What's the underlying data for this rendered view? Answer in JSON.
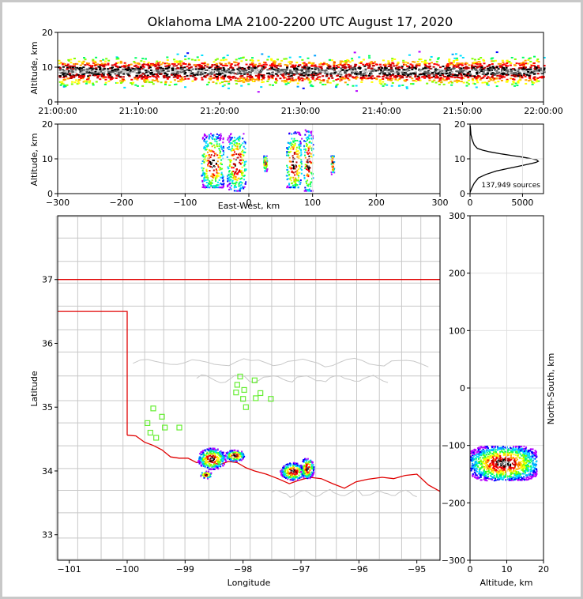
{
  "chart_data": [
    {
      "id": "time-height",
      "type": "heatmap",
      "title": "Oklahoma LMA 2100-2200 UTC August 17, 2020",
      "xlabel": "",
      "ylabel": "Altitude, km",
      "x_ticks": [
        "21:00:00",
        "21:10:00",
        "21:20:00",
        "21:30:00",
        "21:40:00",
        "21:50:00",
        "22:00:00"
      ],
      "xlim_minutes": [
        0,
        60
      ],
      "ylim": [
        0,
        20
      ],
      "y_ticks": [
        0,
        10,
        20
      ],
      "density_peak_altitude_km": 9
    },
    {
      "id": "east-west-altitude",
      "type": "heatmap",
      "xlabel": "East-West, km",
      "ylabel": "Altitude, km",
      "xlim": [
        -300,
        300
      ],
      "x_ticks": [
        -300,
        -200,
        -100,
        0,
        100,
        200,
        300
      ],
      "ylim": [
        0,
        20
      ],
      "y_ticks": [
        0,
        10,
        20
      ],
      "clusters": [
        {
          "x_range": [
            -75,
            -40
          ],
          "alt_range": [
            2,
            19
          ]
        },
        {
          "x_range": [
            -35,
            -5
          ],
          "alt_range": [
            1,
            18
          ]
        },
        {
          "x_range": [
            22,
            28
          ],
          "alt_range": [
            6,
            11
          ]
        },
        {
          "x_range": [
            58,
            82
          ],
          "alt_range": [
            2,
            20
          ]
        },
        {
          "x_range": [
            85,
            100
          ],
          "alt_range": [
            1,
            20
          ]
        },
        {
          "x_range": [
            128,
            133
          ],
          "alt_range": [
            4,
            11
          ]
        }
      ]
    },
    {
      "id": "altitude-histogram",
      "type": "line",
      "xlabel": "",
      "ylabel": "",
      "xlim": [
        0,
        7000
      ],
      "x_ticks": [
        0,
        5000
      ],
      "ylim": [
        0,
        20
      ],
      "y_ticks": [
        0,
        10,
        20
      ],
      "annotation": "137,949 sources",
      "x": [
        0,
        150,
        400,
        800,
        1500,
        2500,
        3600,
        4500,
        5300,
        5900,
        6300,
        6500,
        6350,
        5900,
        5000,
        3900,
        2800,
        1900,
        1200,
        700,
        400,
        200,
        80,
        20
      ],
      "y": [
        0.3,
        1.5,
        3,
        4.5,
        5.5,
        6.5,
        7.2,
        7.8,
        8.3,
        8.7,
        9.0,
        9.3,
        9.7,
        10.0,
        10.5,
        11,
        11.5,
        12,
        12.5,
        13,
        14,
        15.5,
        17,
        19.5
      ]
    },
    {
      "id": "plan-view",
      "type": "scatter",
      "xlabel": "Longitude",
      "ylabel": "Latitude",
      "xlim": [
        -101.2,
        -94.6
      ],
      "x_ticks": [
        -101,
        -100,
        -99,
        -98,
        -97,
        -96,
        -95
      ],
      "ylim": [
        32.6,
        38.0
      ],
      "y_ticks": [
        33,
        34,
        35,
        36,
        37
      ],
      "stations": [
        [
          -99.55,
          34.98
        ],
        [
          -99.4,
          34.85
        ],
        [
          -99.65,
          34.75
        ],
        [
          -99.35,
          34.68
        ],
        [
          -99.6,
          34.6
        ],
        [
          -99.5,
          34.52
        ],
        [
          -99.1,
          34.68
        ],
        [
          -98.05,
          35.48
        ],
        [
          -98.1,
          35.35
        ],
        [
          -97.8,
          35.42
        ],
        [
          -97.98,
          35.27
        ],
        [
          -98.12,
          35.23
        ],
        [
          -97.7,
          35.22
        ],
        [
          -98.0,
          35.13
        ],
        [
          -97.78,
          35.14
        ],
        [
          -97.52,
          35.13
        ],
        [
          -97.95,
          35.0
        ]
      ],
      "storms": [
        {
          "lon": -98.55,
          "lat": 34.2,
          "r_lon": 0.25,
          "r_lat": 0.17
        },
        {
          "lon": -98.15,
          "lat": 34.25,
          "r_lon": 0.18,
          "r_lat": 0.09
        },
        {
          "lon": -97.15,
          "lat": 34.0,
          "r_lon": 0.22,
          "r_lat": 0.14
        },
        {
          "lon": -96.9,
          "lat": 34.05,
          "r_lon": 0.12,
          "r_lat": 0.17
        },
        {
          "lon": -98.65,
          "lat": 33.95,
          "r_lon": 0.1,
          "r_lat": 0.06
        }
      ],
      "red_river": [
        [
          -100,
          34.56
        ],
        [
          -99.85,
          34.55
        ],
        [
          -99.7,
          34.45
        ],
        [
          -99.55,
          34.4
        ],
        [
          -99.4,
          34.33
        ],
        [
          -99.25,
          34.22
        ],
        [
          -99.1,
          34.2
        ],
        [
          -98.95,
          34.2
        ],
        [
          -98.8,
          34.13
        ],
        [
          -98.6,
          34.15
        ],
        [
          -98.4,
          34.1
        ],
        [
          -98.25,
          34.15
        ],
        [
          -98.1,
          34.13
        ],
        [
          -97.95,
          34.05
        ],
        [
          -97.8,
          34.0
        ],
        [
          -97.6,
          33.95
        ],
        [
          -97.4,
          33.88
        ],
        [
          -97.2,
          33.8
        ],
        [
          -97.05,
          33.85
        ],
        [
          -96.85,
          33.9
        ],
        [
          -96.65,
          33.88
        ],
        [
          -96.45,
          33.8
        ],
        [
          -96.25,
          33.73
        ],
        [
          -96.05,
          33.83
        ],
        [
          -95.85,
          33.87
        ],
        [
          -95.6,
          33.9
        ],
        [
          -95.4,
          33.88
        ],
        [
          -95.2,
          33.93
        ],
        [
          -95.0,
          33.95
        ],
        [
          -94.8,
          33.78
        ],
        [
          -94.6,
          33.68
        ]
      ],
      "ok_border": [
        [
          -101.2,
          36.5
        ],
        [
          -100,
          36.5
        ],
        [
          -100,
          34.56
        ]
      ],
      "ks_border": [
        [
          -101.2,
          37.0
        ],
        [
          -94.6,
          37.0
        ]
      ]
    },
    {
      "id": "north-south-altitude",
      "type": "heatmap",
      "xlabel": "Altitude, km",
      "ylabel": "North-South, km",
      "xlim": [
        0,
        20
      ],
      "x_ticks": [
        0,
        10,
        20
      ],
      "ylim": [
        -300,
        300
      ],
      "y_ticks": [
        -300,
        -200,
        -100,
        0,
        100,
        200,
        300
      ],
      "cluster": {
        "y_range": [
          -160,
          -100
        ],
        "alt_range": [
          1,
          19
        ]
      }
    }
  ]
}
